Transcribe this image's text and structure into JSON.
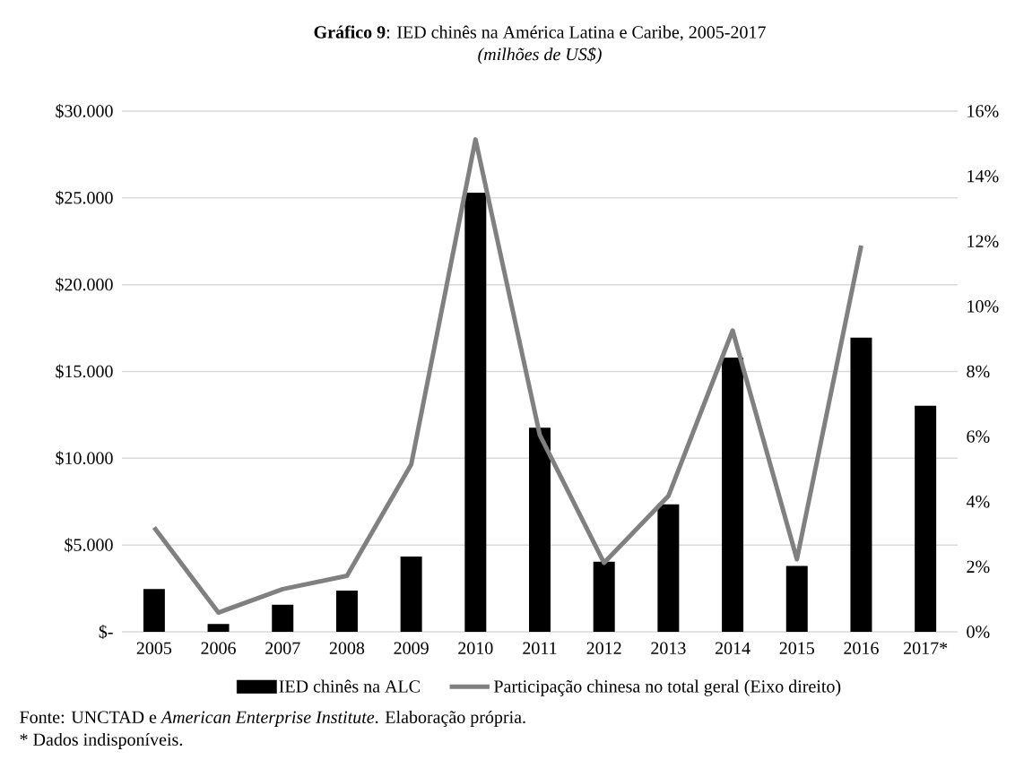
{
  "chart_data": {
    "type": "bar",
    "title": "**Gráfico 9**: IED chinês na América Latina e Caribe, 2005-2017",
    "subtitle": "(milhões de US$)",
    "categories": [
      "2005",
      "2006",
      "2007",
      "2008",
      "2009",
      "2010",
      "2011",
      "2012",
      "2013",
      "2014",
      "2015",
      "2016",
      "2017*"
    ],
    "series": [
      {
        "name": "IED chinês na ALC",
        "color": "#000000",
        "values": [
          2460,
          450,
          1560,
          2380,
          4340,
          25300,
          11760,
          4040,
          7340,
          15800,
          3790,
          16950,
          13030
        ]
      },
      {
        "name": "Participação chinesa no total geral (Eixo direito)",
        "type": "line",
        "axis": "y2",
        "color": "#808080",
        "values": [
          3.21,
          0.59,
          1.31,
          1.72,
          5.14,
          15.13,
          6.05,
          2.12,
          4.17,
          9.26,
          2.23,
          11.87,
          null
        ]
      }
    ],
    "ylim": [
      0,
      30000
    ],
    "yticks": [
      {
        "value": 0,
        "label": "$-"
      },
      {
        "value": 5000,
        "label": "$5.000"
      },
      {
        "value": 10000,
        "label": "$10.000"
      },
      {
        "value": 15000,
        "label": "$15.000"
      },
      {
        "value": 20000,
        "label": "$20.000"
      },
      {
        "value": 25000,
        "label": "$25.000"
      },
      {
        "value": 30000,
        "label": "$30.000"
      }
    ],
    "y2lim": [
      0,
      16
    ],
    "y2ticks": [
      {
        "value": 0,
        "label": "0%"
      },
      {
        "value": 2,
        "label": "2%"
      },
      {
        "value": 4,
        "label": "4%"
      },
      {
        "value": 6,
        "label": "6%"
      },
      {
        "value": 8,
        "label": "8%"
      },
      {
        "value": 10,
        "label": "10%"
      },
      {
        "value": 12,
        "label": "12%"
      },
      {
        "value": 14,
        "label": "14%"
      },
      {
        "value": 16,
        "label": "16%"
      }
    ],
    "grid": "y",
    "legend": "bottom",
    "annotations": [
      "Fonte: UNCTAD e *American Enterprise Institute*. Elaboração própria.",
      "* Dados indisponíveis."
    ]
  }
}
